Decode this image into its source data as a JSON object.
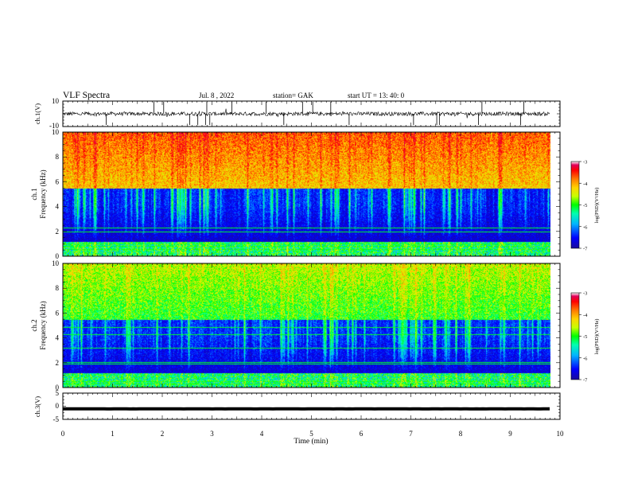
{
  "header": {
    "title": "VLF Spectra",
    "date": "Jul. 8 , 2022",
    "station": "station= GAK",
    "start_ut": "start UT = 13: 40: 0"
  },
  "colors": {
    "colormap": [
      "#1a0a9a",
      "#0000ff",
      "#00b4ff",
      "#00ffb0",
      "#00ff00",
      "#c8ff00",
      "#ffd200",
      "#ff7800",
      "#ff0000",
      "#e0005a",
      "#ffffff"
    ]
  },
  "chart_data": [
    {
      "type": "line",
      "name": "ch1-waveform",
      "ylabel": "ch.1(V)",
      "ylim": [
        -10,
        10
      ],
      "yticks": [
        "10",
        "-10"
      ],
      "xlim": [
        0,
        10
      ],
      "baseline": 0,
      "amplitude": 1.5
    },
    {
      "type": "heatmap",
      "name": "ch1-spectrogram",
      "ylabel_line1": "ch.1",
      "ylabel_line2": "Frequency (kHz)",
      "ylim": [
        0,
        10
      ],
      "yticks": [
        "0",
        "2",
        "4",
        "6",
        "8",
        "10"
      ],
      "xlim": [
        0,
        10
      ],
      "data_end": 9.8,
      "colorbar": {
        "label": "log(PSD)(V²/Hz)",
        "range": [
          -7,
          -3
        ],
        "ticks": [
          "-3",
          "-4",
          "-5",
          "-6",
          "-7"
        ]
      },
      "lines_khz": [
        0.6,
        0.85,
        1.05,
        2.0,
        2.3
      ]
    },
    {
      "type": "heatmap",
      "name": "ch2-spectrogram",
      "ylabel_line1": "ch.2",
      "ylabel_line2": "Frequency (kHz)",
      "ylim": [
        0,
        10
      ],
      "yticks": [
        "0",
        "2",
        "4",
        "6",
        "8",
        "10"
      ],
      "xlim": [
        0,
        10
      ],
      "data_end": 9.8,
      "colorbar": {
        "label": "log(PSD)(V²/Hz)",
        "range": [
          -7,
          -3
        ],
        "ticks": [
          "-3",
          "-4",
          "-5",
          "-6",
          "-7"
        ]
      },
      "lines_khz": [
        0.3,
        0.5,
        1.9,
        2.05,
        3.2,
        4.3,
        4.9
      ]
    },
    {
      "type": "line",
      "name": "ch3-waveform",
      "ylabel": "ch.3(V)",
      "ylim": [
        -5,
        5
      ],
      "yticks": [
        "5",
        "0",
        "-5"
      ],
      "xlim": [
        0,
        10
      ],
      "baseline": -1.0,
      "amplitude": 0.05
    }
  ],
  "xaxis": {
    "label": "Time (min)",
    "ticks": [
      "0",
      "1",
      "2",
      "3",
      "4",
      "5",
      "6",
      "7",
      "8",
      "9",
      "10"
    ]
  }
}
